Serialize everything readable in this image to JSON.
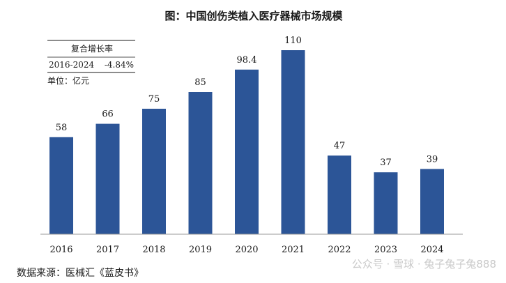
{
  "chart_data": {
    "type": "bar",
    "title": "图：中国创伤类植入医疗器械市场规模",
    "categories": [
      "2016",
      "2017",
      "2018",
      "2019",
      "2020",
      "2021",
      "2022",
      "2023",
      "2024"
    ],
    "values": [
      58,
      66,
      75,
      85,
      98.4,
      110,
      47,
      37,
      39
    ],
    "value_labels": [
      "58",
      "66",
      "75",
      "85",
      "98.4",
      "110",
      "47",
      "37",
      "39"
    ],
    "ylim": [
      0,
      125
    ],
    "grid": false,
    "bar_color": "#2c5597",
    "annotation": {
      "header": "复合增长率",
      "period": "2016-2024",
      "rate": "-4.84%",
      "unit": "单位：亿元"
    }
  },
  "source": "数据来源：医械汇《蓝皮书》",
  "watermark": "公众号 · 雪球 · 兔子兔子兔888"
}
